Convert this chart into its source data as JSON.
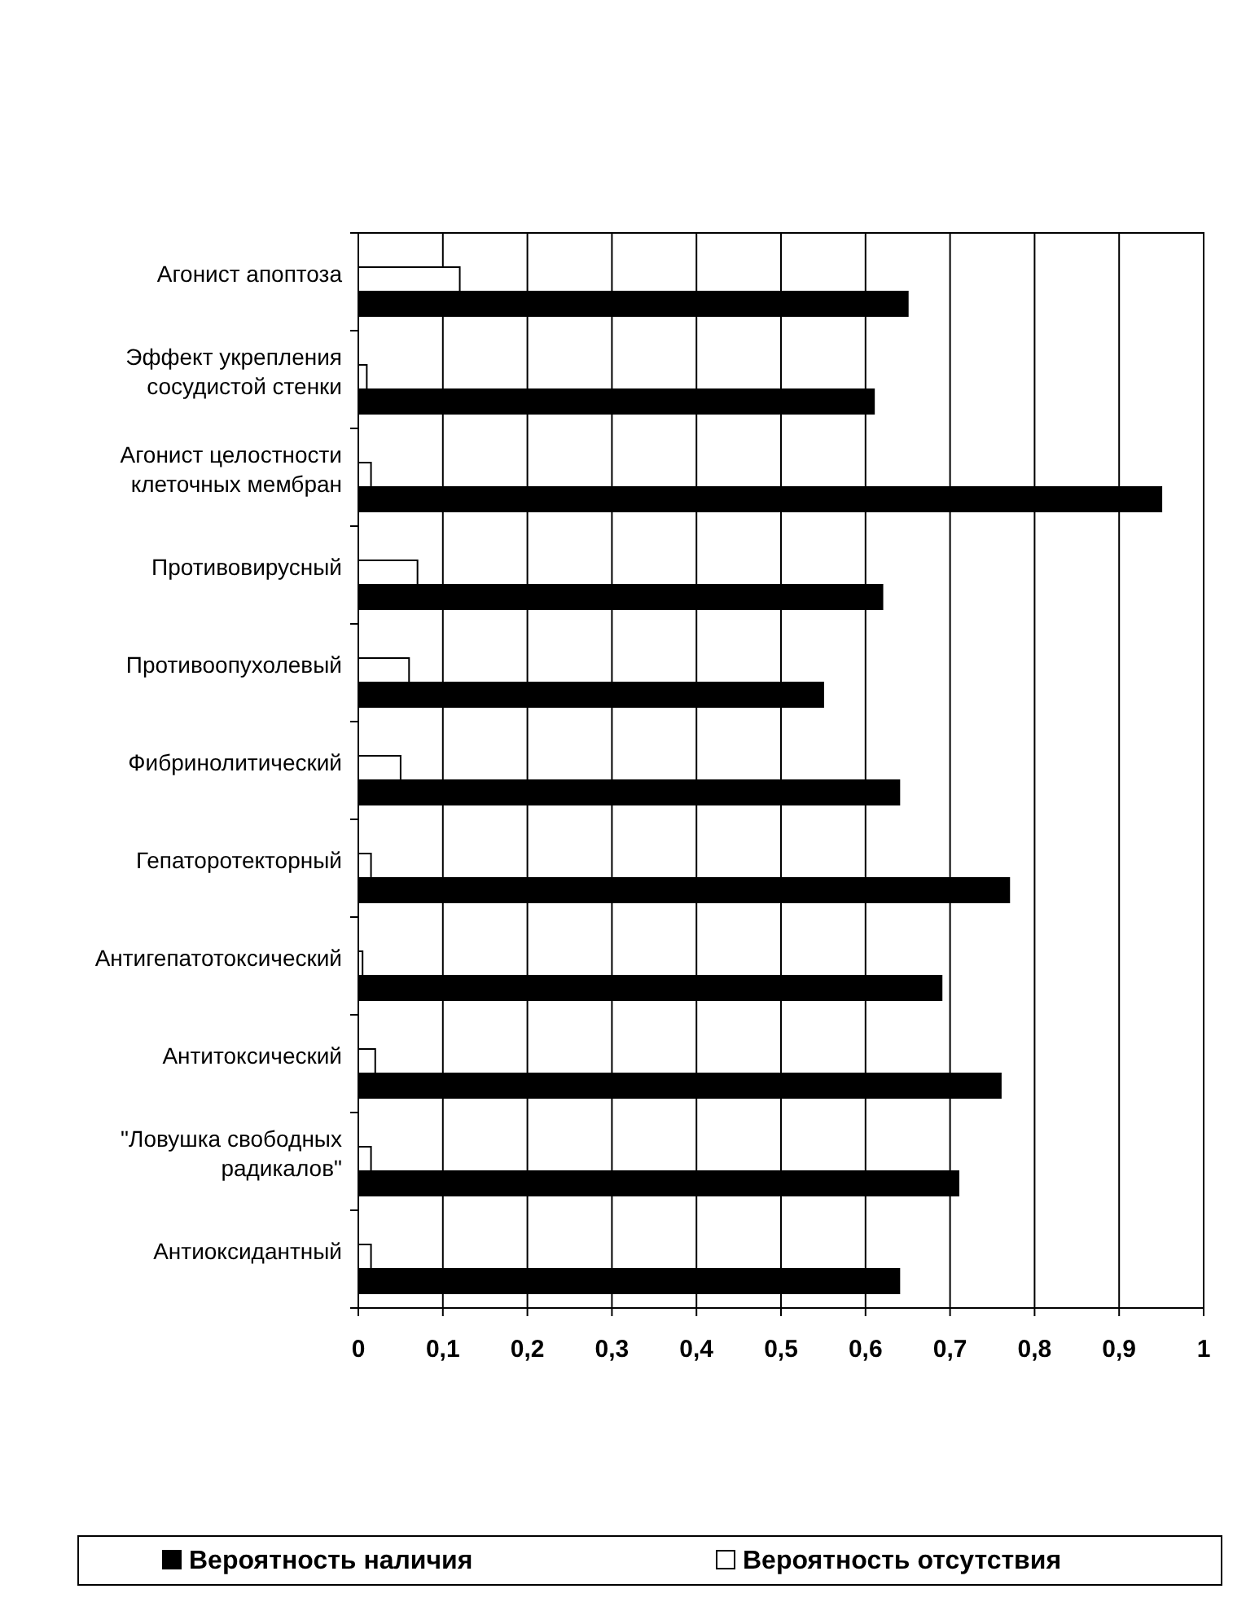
{
  "chart_data": {
    "type": "bar",
    "orientation": "horizontal",
    "categories": [
      "Агонист апоптоза",
      "Эффект укрепления сосудистой стенки",
      "Агонист целостности клеточных мембран",
      "Противовирусный",
      "Противоопухолевый",
      "Фибринолитический",
      "Гепаторотекторный",
      "Антигепатотоксический",
      "Антитоксический",
      "\"Ловушка свободных радикалов\"",
      "Антиоксидантный"
    ],
    "series": [
      {
        "name": "Вероятность наличия",
        "color": "#000000",
        "values": [
          0.65,
          0.61,
          0.95,
          0.62,
          0.55,
          0.64,
          0.77,
          0.69,
          0.76,
          0.71,
          0.64
        ]
      },
      {
        "name": "Вероятность отсутствия",
        "color": "#ffffff",
        "values": [
          0.12,
          0.01,
          0.015,
          0.07,
          0.06,
          0.05,
          0.015,
          0.005,
          0.02,
          0.015,
          0.015
        ]
      }
    ],
    "xlim": [
      0,
      1
    ],
    "xticks": [
      0,
      {
        "value": 0.1,
        "label": "0,1"
      },
      {
        "value": 0.2,
        "label": "0,2"
      },
      {
        "value": 0.3,
        "label": "0,3"
      },
      {
        "value": 0.4,
        "label": "0,4"
      },
      {
        "value": 0.5,
        "label": "0,5"
      },
      {
        "value": 0.6,
        "label": "0,6"
      },
      {
        "value": 0.7,
        "label": "0,7"
      },
      {
        "value": 0.8,
        "label": "0,8"
      },
      {
        "value": 0.9,
        "label": "0,9"
      },
      1
    ],
    "grid": "x",
    "legend": "bottom"
  }
}
